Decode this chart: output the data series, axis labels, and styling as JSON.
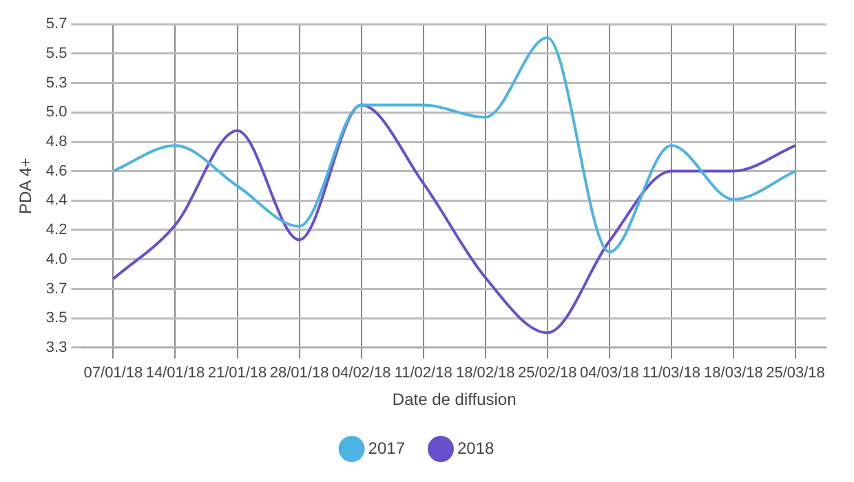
{
  "chart_data": {
    "type": "line",
    "xlabel": "Date de diffusion",
    "ylabel": "PDA 4+",
    "categories": [
      "07/01/18",
      "14/01/18",
      "21/01/18",
      "28/01/18",
      "04/02/18",
      "11/02/18",
      "18/02/18",
      "25/02/18",
      "04/03/18",
      "11/03/18",
      "18/03/18",
      "25/03/18"
    ],
    "series": [
      {
        "name": "2017",
        "color": "#4db3e2",
        "values": [
          4.61,
          4.8,
          4.5,
          4.2,
          5.1,
          5.1,
          5.01,
          5.6,
          4.01,
          4.8,
          4.4,
          4.61
        ]
      },
      {
        "name": "2018",
        "color": "#6a4fcc",
        "values": [
          3.81,
          4.21,
          4.91,
          4.1,
          5.1,
          4.52,
          3.82,
          3.41,
          4.09,
          4.61,
          4.61,
          4.8
        ]
      }
    ],
    "ylim": [
      3.3,
      5.7
    ],
    "yticks": [
      3.3,
      {
        "value": 3.518,
        "label": "3.5"
      },
      {
        "value": 3.736,
        "label": "3.7"
      },
      {
        "value": 3.955,
        "label": "4.0"
      },
      {
        "value": 4.173,
        "label": "4.2"
      },
      {
        "value": 4.391,
        "label": "4.4"
      },
      {
        "value": 4.609,
        "label": "4.6"
      },
      {
        "value": 4.827,
        "label": "4.8"
      },
      {
        "value": 5.045,
        "label": "5.0"
      },
      {
        "value": 5.264,
        "label": "5.3"
      },
      {
        "value": 5.482,
        "label": "5.5"
      },
      5.7
    ],
    "grid": true,
    "legend": "bottom",
    "marker": "none",
    "line_style": "solid"
  }
}
